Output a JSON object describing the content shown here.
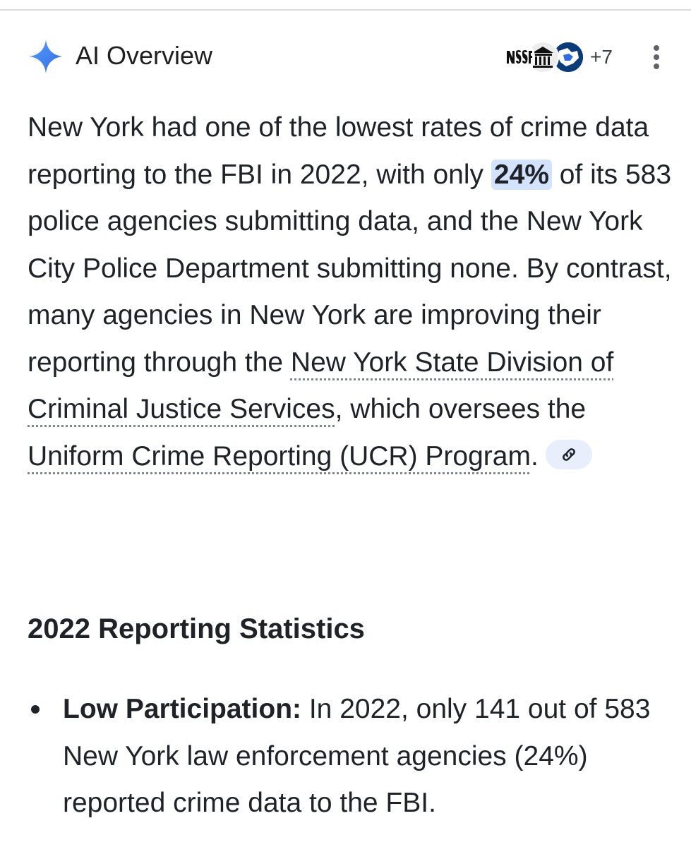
{
  "header": {
    "title": "AI Overview",
    "source_icons": [
      "NSSF",
      "bank-building",
      "state-map"
    ],
    "source_count": "+7"
  },
  "overview": {
    "seg1": "New York had one of the lowest rates of crime data reporting to the FBI in 2022, with only ",
    "highlight": "24%",
    "seg2": " of its 583 police agencies submitting data, and the New York City Police Department submitting none. By contrast, many agencies in New York are improving their reporting through the ",
    "link1": "New York State Division of Criminal Justice Services",
    "seg3": ", which oversees the ",
    "link2": "Uniform Crime Reporting (UCR) Program",
    "seg4": "."
  },
  "section": {
    "heading": "2022 Reporting Statistics",
    "bullets": [
      {
        "label": "Low Participation:",
        "text": " In 2022, only 141 out of 583 New York law enforcement agencies (24%) reported crime data to the FBI."
      }
    ]
  },
  "colors": {
    "highlight_bg": "#d3e3fd",
    "chip_bg": "#e8eefb",
    "spark_blue": "#4a86f7"
  }
}
